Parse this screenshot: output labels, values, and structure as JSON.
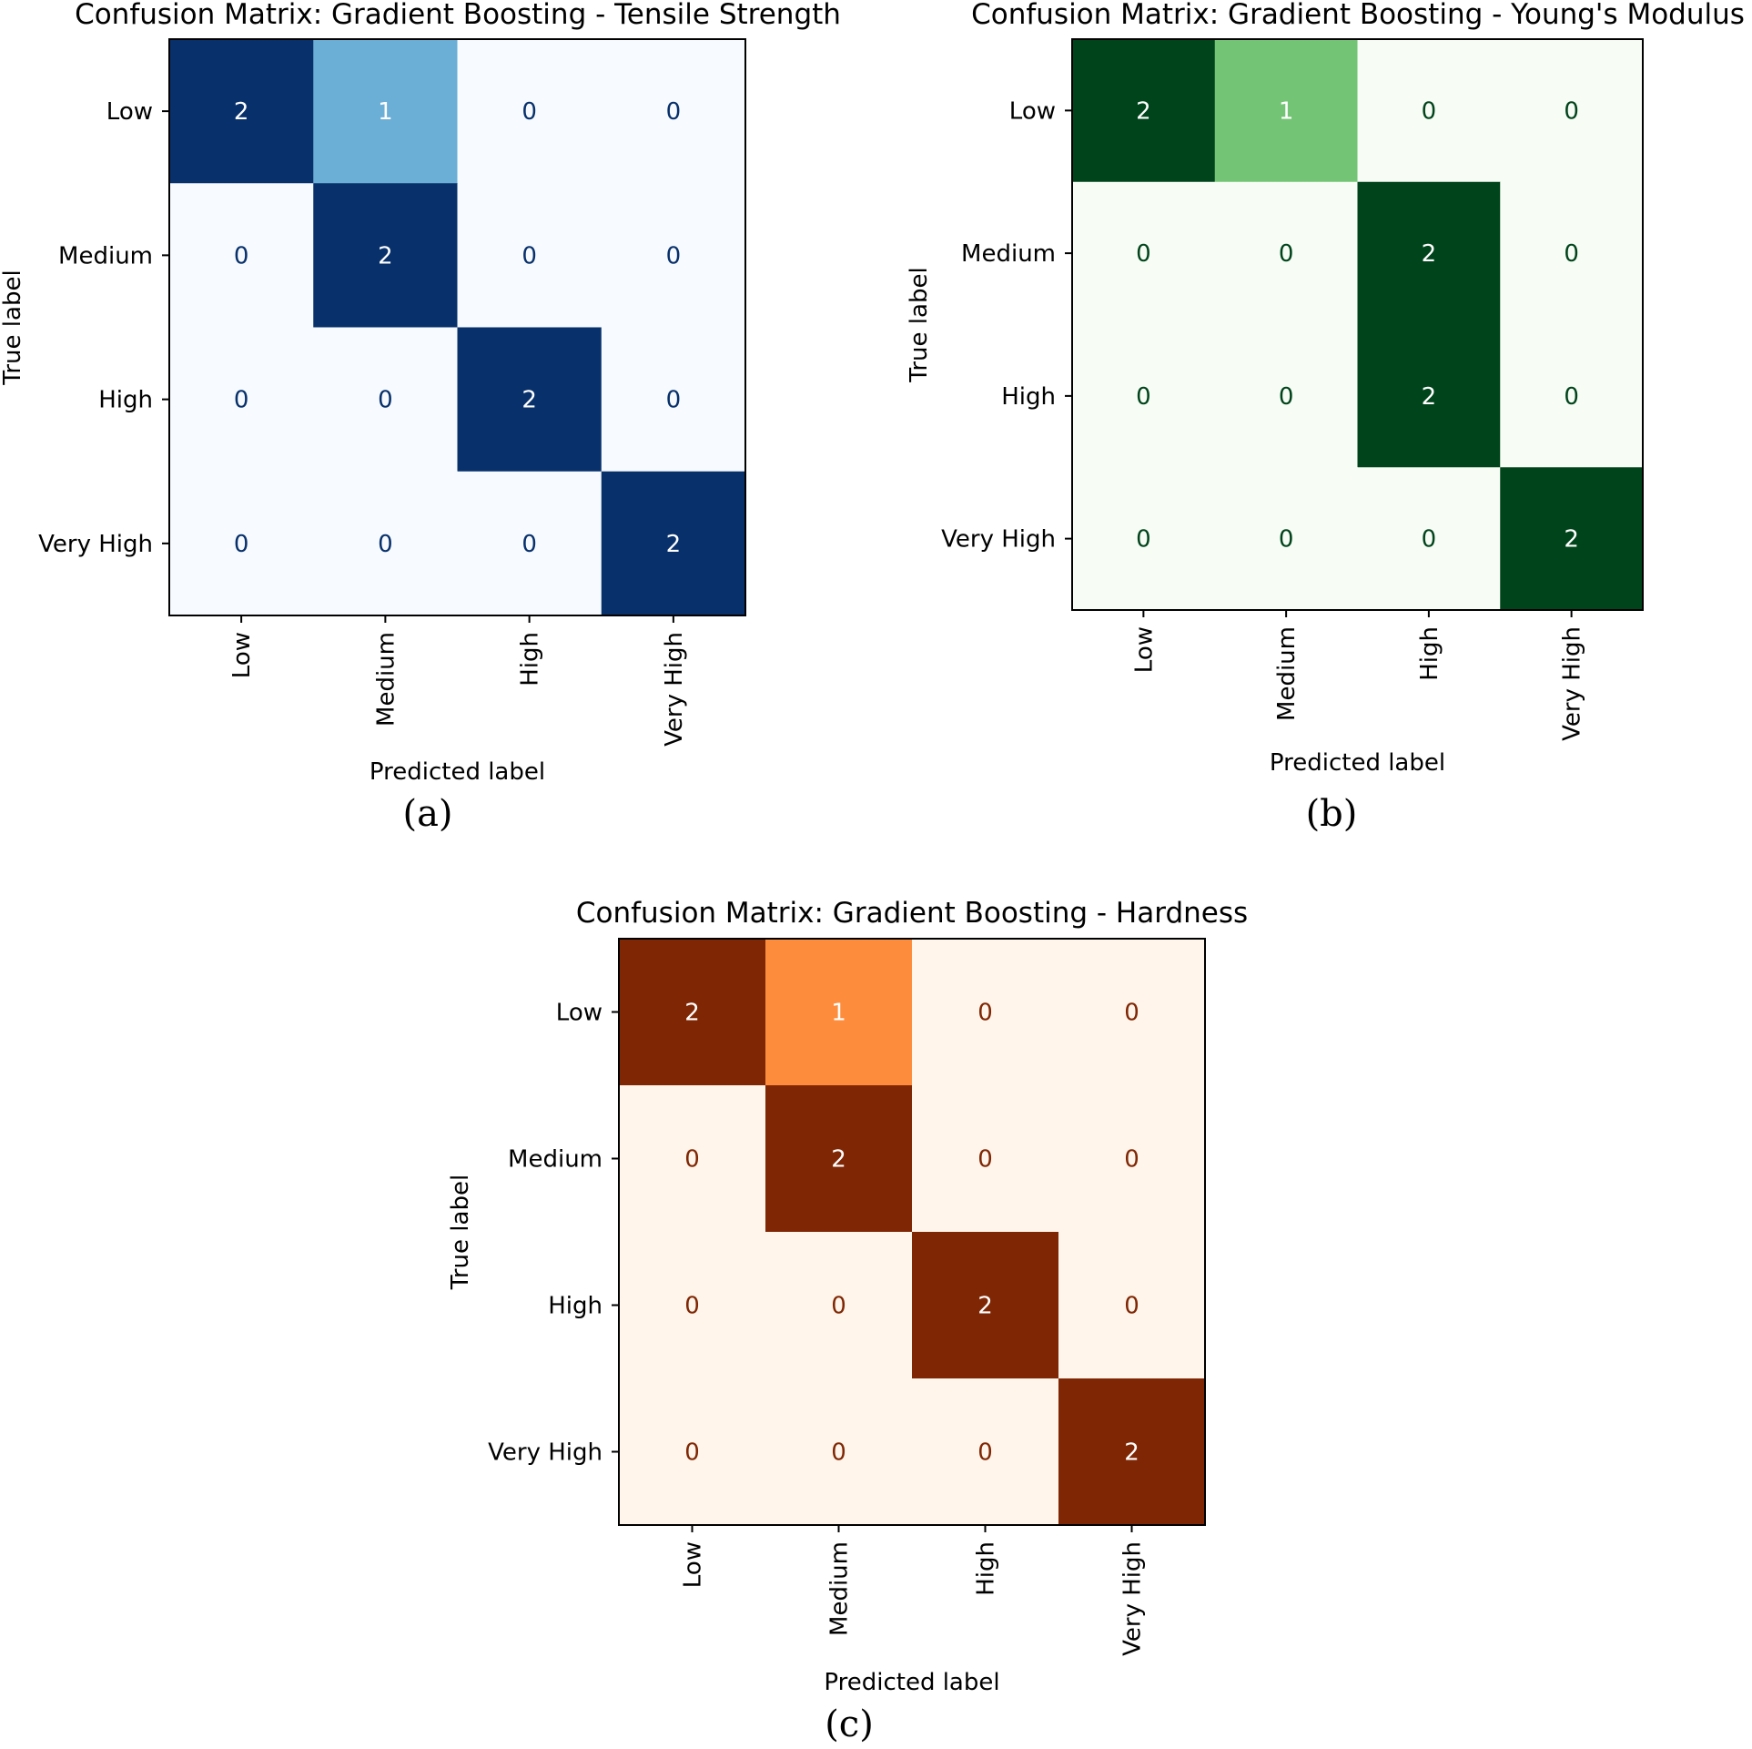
{
  "chart_data": [
    {
      "type": "heatmap",
      "panel_label": "(a)",
      "title": "Confusion Matrix: Gradient Boosting - Tensile Strength",
      "xlabel": "Predicted label",
      "ylabel": "True label",
      "x_categories": [
        "Low",
        "Medium",
        "High",
        "Very High"
      ],
      "y_categories": [
        "Low",
        "Medium",
        "High",
        "Very High"
      ],
      "matrix": [
        [
          2,
          1,
          0,
          0
        ],
        [
          0,
          2,
          0,
          0
        ],
        [
          0,
          0,
          2,
          0
        ],
        [
          0,
          0,
          0,
          2
        ]
      ],
      "colormap": "Blues",
      "colors": {
        "low": "#f7fbff",
        "mid": "#6baed6",
        "high": "#08306b",
        "text_light": "#ffffff",
        "text_dark": "#08306b"
      },
      "vmin": 0,
      "vmax": 2
    },
    {
      "type": "heatmap",
      "panel_label": "(b)",
      "title": "Confusion Matrix: Gradient Boosting - Young's Modulus",
      "xlabel": "Predicted label",
      "ylabel": "True label",
      "x_categories": [
        "Low",
        "Medium",
        "High",
        "Very High"
      ],
      "y_categories": [
        "Low",
        "Medium",
        "High",
        "Very High"
      ],
      "matrix": [
        [
          2,
          1,
          0,
          0
        ],
        [
          0,
          0,
          2,
          0
        ],
        [
          0,
          0,
          2,
          0
        ],
        [
          0,
          0,
          0,
          2
        ]
      ],
      "colormap": "Greens",
      "colors": {
        "low": "#f7fcf5",
        "mid": "#74c476",
        "high": "#00441b",
        "text_light": "#ffffff",
        "text_dark": "#00441b"
      },
      "vmin": 0,
      "vmax": 2
    },
    {
      "type": "heatmap",
      "panel_label": "(c)",
      "title": "Confusion Matrix: Gradient Boosting - Hardness",
      "xlabel": "Predicted label",
      "ylabel": "True label",
      "x_categories": [
        "Low",
        "Medium",
        "High",
        "Very High"
      ],
      "y_categories": [
        "Low",
        "Medium",
        "High",
        "Very High"
      ],
      "matrix": [
        [
          2,
          1,
          0,
          0
        ],
        [
          0,
          2,
          0,
          0
        ],
        [
          0,
          0,
          2,
          0
        ],
        [
          0,
          0,
          0,
          2
        ]
      ],
      "colormap": "Oranges",
      "colors": {
        "low": "#fff5eb",
        "mid": "#fd8d3c",
        "high": "#7f2704",
        "text_light": "#ffffff",
        "text_dark": "#7f2704"
      },
      "vmin": 0,
      "vmax": 2
    }
  ]
}
